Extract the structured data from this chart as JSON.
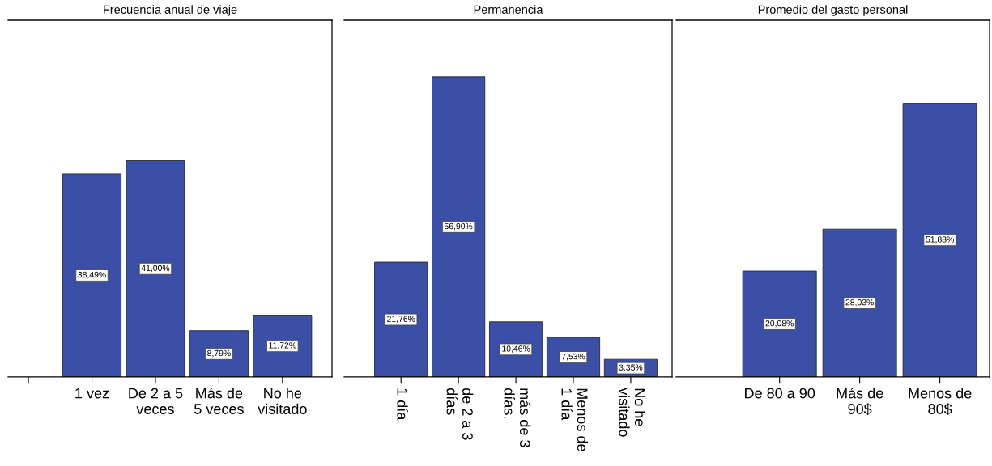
{
  "chart_data": [
    {
      "type": "bar",
      "title": "Frecuencia anual de viaje",
      "categories": [
        null,
        "1 vez",
        "De 2 a 5\nveces",
        "Más de\n5 veces",
        "No he\nvisitado"
      ],
      "values": [
        null,
        38.49,
        41.0,
        8.79,
        11.72
      ],
      "value_labels": [
        null,
        "38,49%",
        "41,00%",
        "8,79%",
        "11,72%"
      ],
      "color": "#3c4fa6",
      "ylim": [
        0,
        67.6
      ],
      "tick_labels": "x",
      "grid": false,
      "legend": false
    },
    {
      "type": "bar",
      "title": "Permanencia",
      "categories": [
        "1 día",
        "de 2 a 3\ndías",
        "más de 3\ndías.",
        "Menos de\n1 día",
        "No he\nvisitado"
      ],
      "values": [
        21.76,
        56.9,
        10.46,
        7.53,
        3.35
      ],
      "value_labels": [
        "21,76%",
        "56,90%",
        "10,46%",
        "7,53%",
        "3,35%"
      ],
      "color": "#3c4fa6",
      "ylim": [
        0,
        67.6
      ],
      "tick_labels": "x",
      "grid": false,
      "legend": false
    },
    {
      "type": "bar",
      "title": "Promedio del gasto personal",
      "categories": [
        "De 80 a 90",
        "Más de\n90$",
        "Menos de\n80$"
      ],
      "values": [
        20.08,
        28.03,
        51.88
      ],
      "value_labels": [
        "20,08%",
        "28,03%",
        "51,88%"
      ],
      "color": "#3c4fa6",
      "ylim": [
        0,
        67.6
      ],
      "tick_labels": "x",
      "grid": false,
      "legend": false
    }
  ]
}
